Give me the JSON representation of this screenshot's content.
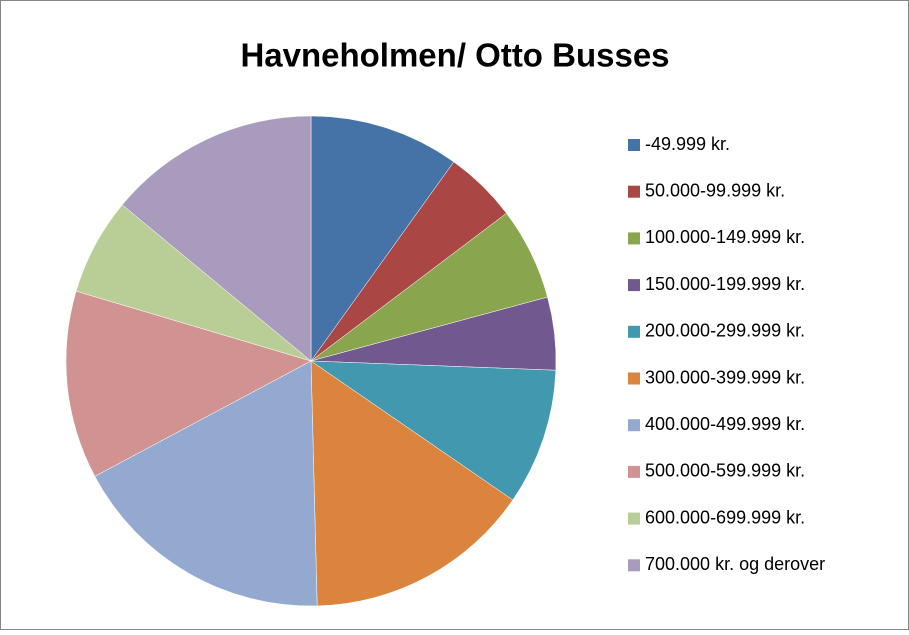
{
  "chart_data": {
    "type": "pie",
    "title": "Havneholmen/ Otto Busses",
    "categories": [
      "-49.999 kr.",
      "50.000-99.999 kr.",
      "100.000-149.999 kr.",
      "150.000-199.999 kr.",
      "200.000-299.999 kr.",
      "300.000-399.999 kr.",
      "400.000-499.999 kr.",
      "500.000-599.999 kr.",
      "600.000-699.999 kr.",
      "700.000 kr. og derover"
    ],
    "values": [
      9.9,
      4.8,
      6.1,
      4.8,
      9.0,
      15.0,
      17.6,
      12.4,
      6.4,
      14.0
    ],
    "colors": [
      "#4572A7",
      "#AA4643",
      "#89A54E",
      "#71588F",
      "#4198AF",
      "#DB843D",
      "#93A9CF",
      "#D19392",
      "#B9CD96",
      "#A99BBD"
    ],
    "legend": "right"
  }
}
